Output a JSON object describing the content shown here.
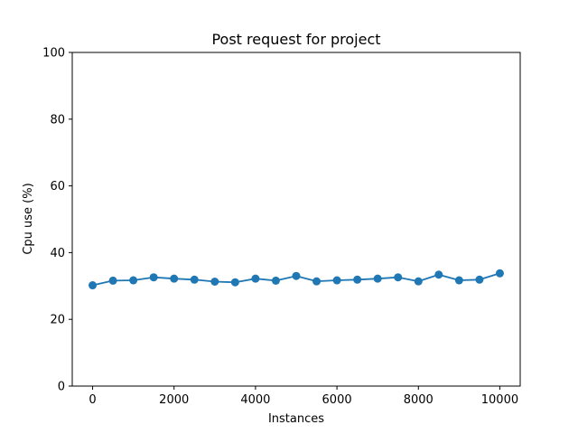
{
  "chart_data": {
    "type": "line",
    "title": "Post request for project",
    "xlabel": "Instances",
    "ylabel": "Cpu use (%)",
    "xlim": [
      -500,
      10500
    ],
    "ylim": [
      0,
      100
    ],
    "xticks": [
      0,
      2000,
      4000,
      6000,
      8000,
      10000
    ],
    "yticks": [
      0,
      20,
      40,
      60,
      80,
      100
    ],
    "grid": false,
    "legend": "none",
    "series": [
      {
        "color": "#1f77b4",
        "marker": "circle",
        "x": [
          0,
          500,
          1000,
          1500,
          2000,
          2500,
          3000,
          3500,
          4000,
          4500,
          5000,
          5500,
          6000,
          6500,
          7000,
          7500,
          8000,
          8500,
          9000,
          9500,
          10000
        ],
        "y": [
          30.2,
          31.6,
          31.7,
          32.6,
          32.2,
          31.9,
          31.3,
          31.1,
          32.2,
          31.6,
          33.0,
          31.4,
          31.7,
          31.9,
          32.2,
          32.6,
          31.4,
          33.4,
          31.7,
          31.9,
          33.8
        ]
      }
    ]
  }
}
